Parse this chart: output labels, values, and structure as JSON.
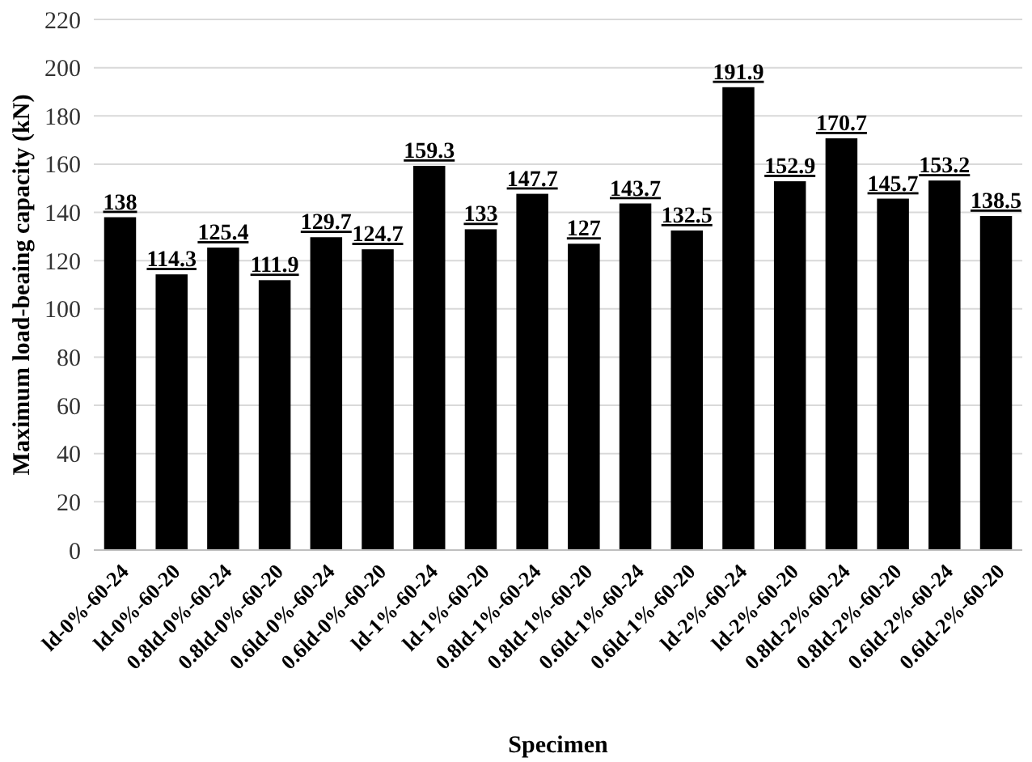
{
  "chart_data": {
    "type": "bar",
    "xlabel": "Specimen",
    "ylabel": "Maximum load-beaing capacity (kN)",
    "categories": [
      "ld-0%-60-24",
      "ld-0%-60-20",
      "0.8ld-0%-60-24",
      "0.8ld-0%-60-20",
      "0.6ld-0%-60-24",
      "0.6ld-0%-60-20",
      "ld-1%-60-24",
      "ld-1%-60-20",
      "0.8ld-1%-60-24",
      "0.8ld-1%-60-20",
      "0.6ld-1%-60-24",
      "0.6ld-1%-60-20",
      "ld-2%-60-24",
      "ld-2%-60-20",
      "0.8ld-2%-60-24",
      "0.8ld-2%-60-20",
      "0.6ld-2%-60-24",
      "0.6ld-2%-60-20"
    ],
    "values": [
      138,
      114.3,
      125.4,
      111.9,
      129.7,
      124.7,
      159.3,
      133,
      147.7,
      127,
      143.7,
      132.5,
      191.9,
      152.9,
      170.7,
      145.7,
      153.2,
      138.5
    ],
    "color": "#000000",
    "ylim": [
      0,
      220
    ],
    "yticks": [
      0,
      20,
      40,
      60,
      80,
      100,
      120,
      140,
      160,
      180,
      200,
      220
    ],
    "grid": "y",
    "data_labels": true
  }
}
